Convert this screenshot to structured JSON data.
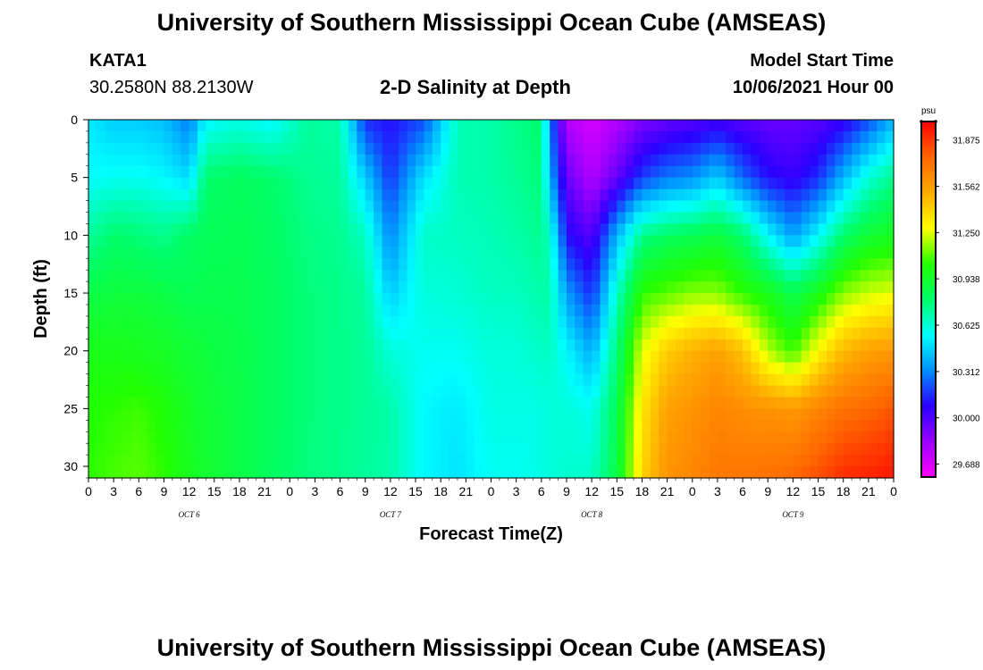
{
  "page": {
    "title_top": "University of Southern Mississippi Ocean Cube (AMSEAS)",
    "title_bottom": "University of Southern Mississippi Ocean Cube (AMSEAS)",
    "station": "KATA1",
    "coords": "30.2580N  88.2130W",
    "chart_title": "2-D Salinity at Depth",
    "model_start_label": "Model Start Time",
    "model_start_value": "10/06/2021 Hour 00"
  },
  "chart_data": {
    "type": "heatmap",
    "title": "2-D Salinity at Depth",
    "xlabel": "Forecast Time(Z)",
    "ylabel": "Depth (ft)",
    "x_hours_range": [
      0,
      96
    ],
    "y_range": [
      0,
      31
    ],
    "y_inverted": true,
    "y_ticks": [
      0,
      5,
      10,
      15,
      20,
      25,
      30
    ],
    "x_tick_labels": [
      "0",
      "3",
      "6",
      "9",
      "12",
      "15",
      "18",
      "21",
      "0",
      "3",
      "6",
      "9",
      "12",
      "15",
      "18",
      "21",
      "0",
      "3",
      "6",
      "9",
      "12",
      "15",
      "18",
      "21",
      "0",
      "3",
      "6",
      "9",
      "12",
      "15",
      "18",
      "21",
      "0"
    ],
    "day_labels": [
      {
        "label": "OCT 6",
        "hour": 12
      },
      {
        "label": "OCT 7",
        "hour": 36
      },
      {
        "label": "OCT 8",
        "hour": 60
      },
      {
        "label": "OCT 9",
        "hour": 84
      }
    ],
    "colorbar": {
      "unit": "psu",
      "range": [
        29.6,
        32.0
      ],
      "ticks": [
        "29.688",
        "30.000",
        "30.312",
        "30.625",
        "30.938",
        "31.250",
        "31.562",
        "31.875"
      ],
      "colors": [
        "#ff00ff",
        "#9b00ff",
        "#2a00ff",
        "#0090ff",
        "#00ffff",
        "#00ff6a",
        "#22ff00",
        "#ffff00",
        "#ffaa00",
        "#ff6600",
        "#ff0000"
      ]
    },
    "profiles": [
      {
        "hour": 0,
        "depths": [
          0,
          5,
          10,
          15,
          20,
          25,
          31
        ],
        "values": [
          30.52,
          30.56,
          30.72,
          30.88,
          30.98,
          31.03,
          31.05
        ]
      },
      {
        "hour": 3,
        "depths": [
          0,
          5,
          10,
          15,
          20,
          25,
          31
        ],
        "values": [
          30.45,
          30.58,
          30.8,
          30.9,
          30.98,
          31.05,
          31.08
        ]
      },
      {
        "hour": 6,
        "depths": [
          0,
          5,
          10,
          15,
          20,
          25,
          31
        ],
        "values": [
          30.45,
          30.58,
          30.78,
          30.9,
          30.97,
          31.07,
          31.1
        ]
      },
      {
        "hour": 9,
        "depths": [
          0,
          5,
          10,
          15,
          20,
          25,
          31
        ],
        "values": [
          30.42,
          30.55,
          30.75,
          30.88,
          30.95,
          31.02,
          31.05
        ]
      },
      {
        "hour": 12,
        "depths": [
          0,
          5,
          10,
          15,
          20,
          25,
          31
        ],
        "values": [
          30.28,
          30.48,
          30.82,
          30.85,
          30.92,
          30.95,
          30.97
        ]
      },
      {
        "hour": 14,
        "depths": [
          0,
          5,
          10,
          15,
          20,
          25,
          31
        ],
        "values": [
          30.55,
          30.8,
          30.84,
          30.86,
          30.9,
          30.92,
          30.93
        ]
      },
      {
        "hour": 18,
        "depths": [
          0,
          5,
          10,
          15,
          20,
          25,
          31
        ],
        "values": [
          30.6,
          30.83,
          30.85,
          30.86,
          30.87,
          30.88,
          30.88
        ]
      },
      {
        "hour": 22,
        "depths": [
          0,
          5,
          10,
          15,
          20,
          25,
          31
        ],
        "values": [
          30.55,
          30.8,
          30.82,
          30.83,
          30.83,
          30.83,
          30.82
        ]
      },
      {
        "hour": 26,
        "depths": [
          0,
          5,
          10,
          15,
          20,
          25,
          31
        ],
        "values": [
          30.72,
          30.74,
          30.76,
          30.78,
          30.78,
          30.78,
          30.77
        ]
      },
      {
        "hour": 30,
        "depths": [
          0,
          5,
          10,
          15,
          20,
          25,
          31
        ],
        "values": [
          30.7,
          30.72,
          30.74,
          30.75,
          30.75,
          30.75,
          30.75
        ]
      },
      {
        "hour": 33,
        "depths": [
          0,
          5,
          10,
          15,
          20,
          25,
          31
        ],
        "values": [
          30.15,
          30.45,
          30.66,
          30.72,
          30.73,
          30.73,
          30.72
        ]
      },
      {
        "hour": 36,
        "depths": [
          0,
          5,
          10,
          15,
          20,
          25,
          31
        ],
        "values": [
          30.1,
          30.16,
          30.3,
          30.45,
          30.62,
          30.7,
          30.7
        ]
      },
      {
        "hour": 40,
        "depths": [
          0,
          5,
          10,
          15,
          20,
          25,
          31
        ],
        "values": [
          30.2,
          30.5,
          30.65,
          30.62,
          30.58,
          30.55,
          30.55
        ]
      },
      {
        "hour": 44,
        "depths": [
          0,
          5,
          10,
          15,
          20,
          25,
          31
        ],
        "values": [
          30.68,
          30.68,
          30.66,
          30.63,
          30.58,
          30.52,
          30.5
        ]
      },
      {
        "hour": 48,
        "depths": [
          0,
          5,
          10,
          15,
          20,
          25,
          31
        ],
        "values": [
          30.7,
          30.7,
          30.68,
          30.66,
          30.62,
          30.6,
          30.58
        ]
      },
      {
        "hour": 51,
        "depths": [
          0,
          5,
          10,
          15,
          20,
          25,
          31
        ],
        "values": [
          30.75,
          30.73,
          30.7,
          30.66,
          30.62,
          30.6,
          30.58
        ]
      },
      {
        "hour": 54,
        "depths": [
          0,
          5,
          10,
          15,
          20,
          25,
          31
        ],
        "values": [
          30.8,
          30.78,
          30.74,
          30.7,
          30.65,
          30.6,
          30.6
        ]
      },
      {
        "hour": 55,
        "depths": [
          0,
          5,
          10,
          15,
          20,
          25,
          31
        ],
        "values": [
          30.3,
          30.4,
          30.65,
          30.7,
          30.66,
          30.62,
          30.62
        ]
      },
      {
        "hour": 57,
        "depths": [
          0,
          5,
          10,
          15,
          20,
          25,
          31
        ],
        "values": [
          29.78,
          29.95,
          30.1,
          30.35,
          30.55,
          30.62,
          30.64
        ]
      },
      {
        "hour": 60,
        "depths": [
          0,
          5,
          10,
          15,
          20,
          25,
          31
        ],
        "values": [
          29.7,
          29.78,
          29.98,
          30.15,
          30.38,
          30.58,
          30.65
        ]
      },
      {
        "hour": 63,
        "depths": [
          0,
          5,
          10,
          15,
          20,
          25,
          31
        ],
        "values": [
          29.78,
          29.95,
          30.4,
          30.65,
          30.78,
          30.85,
          30.88
        ]
      },
      {
        "hour": 66,
        "depths": [
          0,
          5,
          10,
          15,
          20,
          25,
          31
        ],
        "values": [
          29.9,
          30.18,
          30.75,
          31.05,
          31.25,
          31.35,
          31.4
        ]
      },
      {
        "hour": 69,
        "depths": [
          0,
          5,
          10,
          15,
          20,
          25,
          31
        ],
        "values": [
          29.95,
          30.28,
          30.82,
          31.1,
          31.42,
          31.55,
          31.6
        ]
      },
      {
        "hour": 72,
        "depths": [
          0,
          5,
          10,
          15,
          20,
          25,
          31
        ],
        "values": [
          29.98,
          30.32,
          30.85,
          31.15,
          31.5,
          31.6,
          31.65
        ]
      },
      {
        "hour": 75,
        "depths": [
          0,
          5,
          10,
          15,
          20,
          25,
          31
        ],
        "values": [
          30.02,
          30.45,
          30.9,
          31.15,
          31.55,
          31.65,
          31.7
        ]
      },
      {
        "hour": 78,
        "depths": [
          0,
          5,
          10,
          15,
          20,
          25,
          31
        ],
        "values": [
          29.98,
          30.25,
          30.8,
          31.05,
          31.45,
          31.62,
          31.7
        ]
      },
      {
        "hour": 81,
        "depths": [
          0,
          5,
          10,
          15,
          20,
          25,
          31
        ],
        "values": [
          29.95,
          30.1,
          30.55,
          30.98,
          31.2,
          31.6,
          31.72
        ]
      },
      {
        "hour": 84,
        "depths": [
          0,
          5,
          10,
          15,
          20,
          25,
          31
        ],
        "values": [
          29.95,
          30.05,
          30.35,
          30.86,
          31.06,
          31.58,
          31.75
        ]
      },
      {
        "hour": 87,
        "depths": [
          0,
          5,
          10,
          15,
          20,
          25,
          31
        ],
        "values": [
          29.98,
          30.15,
          30.55,
          30.98,
          31.3,
          31.65,
          31.82
        ]
      },
      {
        "hour": 90,
        "depths": [
          0,
          5,
          10,
          15,
          20,
          25,
          31
        ],
        "values": [
          30.05,
          30.4,
          30.8,
          31.15,
          31.48,
          31.72,
          31.9
        ]
      },
      {
        "hour": 93,
        "depths": [
          0,
          5,
          10,
          15,
          20,
          25,
          31
        ],
        "values": [
          30.2,
          30.62,
          30.92,
          31.22,
          31.55,
          31.75,
          31.92
        ]
      },
      {
        "hour": 96,
        "depths": [
          0,
          5,
          10,
          15,
          20,
          25,
          31
        ],
        "values": [
          30.4,
          30.75,
          30.96,
          31.25,
          31.58,
          31.8,
          31.95
        ]
      }
    ]
  }
}
